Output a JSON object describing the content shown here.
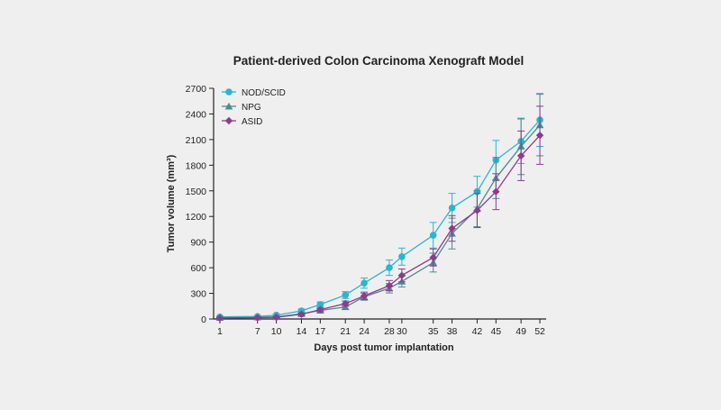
{
  "chart_data": {
    "type": "line",
    "title": "Patient-derived Colon Carcinoma Xenograft Model",
    "xlabel": "Days post tumor implantation",
    "ylabel": "Tumor volume (mm³)",
    "x_ticks": [
      1,
      7,
      10,
      14,
      17,
      21,
      24,
      28,
      30,
      35,
      38,
      42,
      45,
      49,
      52
    ],
    "xlim": [
      0,
      53
    ],
    "ylim": [
      0,
      2700
    ],
    "y_ticks": [
      0,
      300,
      600,
      900,
      1200,
      1500,
      1800,
      2100,
      2400,
      2700
    ],
    "legend_position": "top-left",
    "series": [
      {
        "name": "NOD/SCID",
        "color": "#29b6d2",
        "marker": "circle",
        "x": [
          1,
          7,
          10,
          14,
          17,
          21,
          24,
          28,
          30,
          35,
          38,
          42,
          45,
          49,
          52
        ],
        "y": [
          25,
          30,
          45,
          95,
          170,
          280,
          420,
          600,
          730,
          980,
          1300,
          1490,
          1860,
          2080,
          2330
        ],
        "err": [
          10,
          10,
          12,
          20,
          30,
          40,
          60,
          90,
          100,
          150,
          170,
          180,
          230,
          260,
          310
        ]
      },
      {
        "name": "NPG",
        "color": "#4f8a8f",
        "marker": "triangle",
        "x": [
          1,
          7,
          10,
          14,
          17,
          21,
          24,
          28,
          30,
          35,
          38,
          42,
          45,
          49,
          52
        ],
        "y": [
          15,
          20,
          25,
          60,
          100,
          140,
          260,
          360,
          440,
          660,
          1000,
          1290,
          1650,
          2020,
          2270
        ],
        "err": [
          8,
          8,
          10,
          15,
          20,
          25,
          40,
          55,
          65,
          110,
          180,
          210,
          240,
          330,
          360
        ]
      },
      {
        "name": "ASID",
        "color": "#8e3a8e",
        "marker": "diamond",
        "x": [
          1,
          7,
          10,
          14,
          17,
          21,
          24,
          28,
          30,
          35,
          38,
          42,
          45,
          49,
          52
        ],
        "y": [
          10,
          15,
          20,
          55,
          110,
          180,
          270,
          390,
          510,
          720,
          1060,
          1270,
          1490,
          1910,
          2150
        ],
        "err": [
          6,
          6,
          8,
          12,
          18,
          30,
          45,
          60,
          75,
          100,
          150,
          200,
          210,
          290,
          340
        ]
      }
    ]
  }
}
